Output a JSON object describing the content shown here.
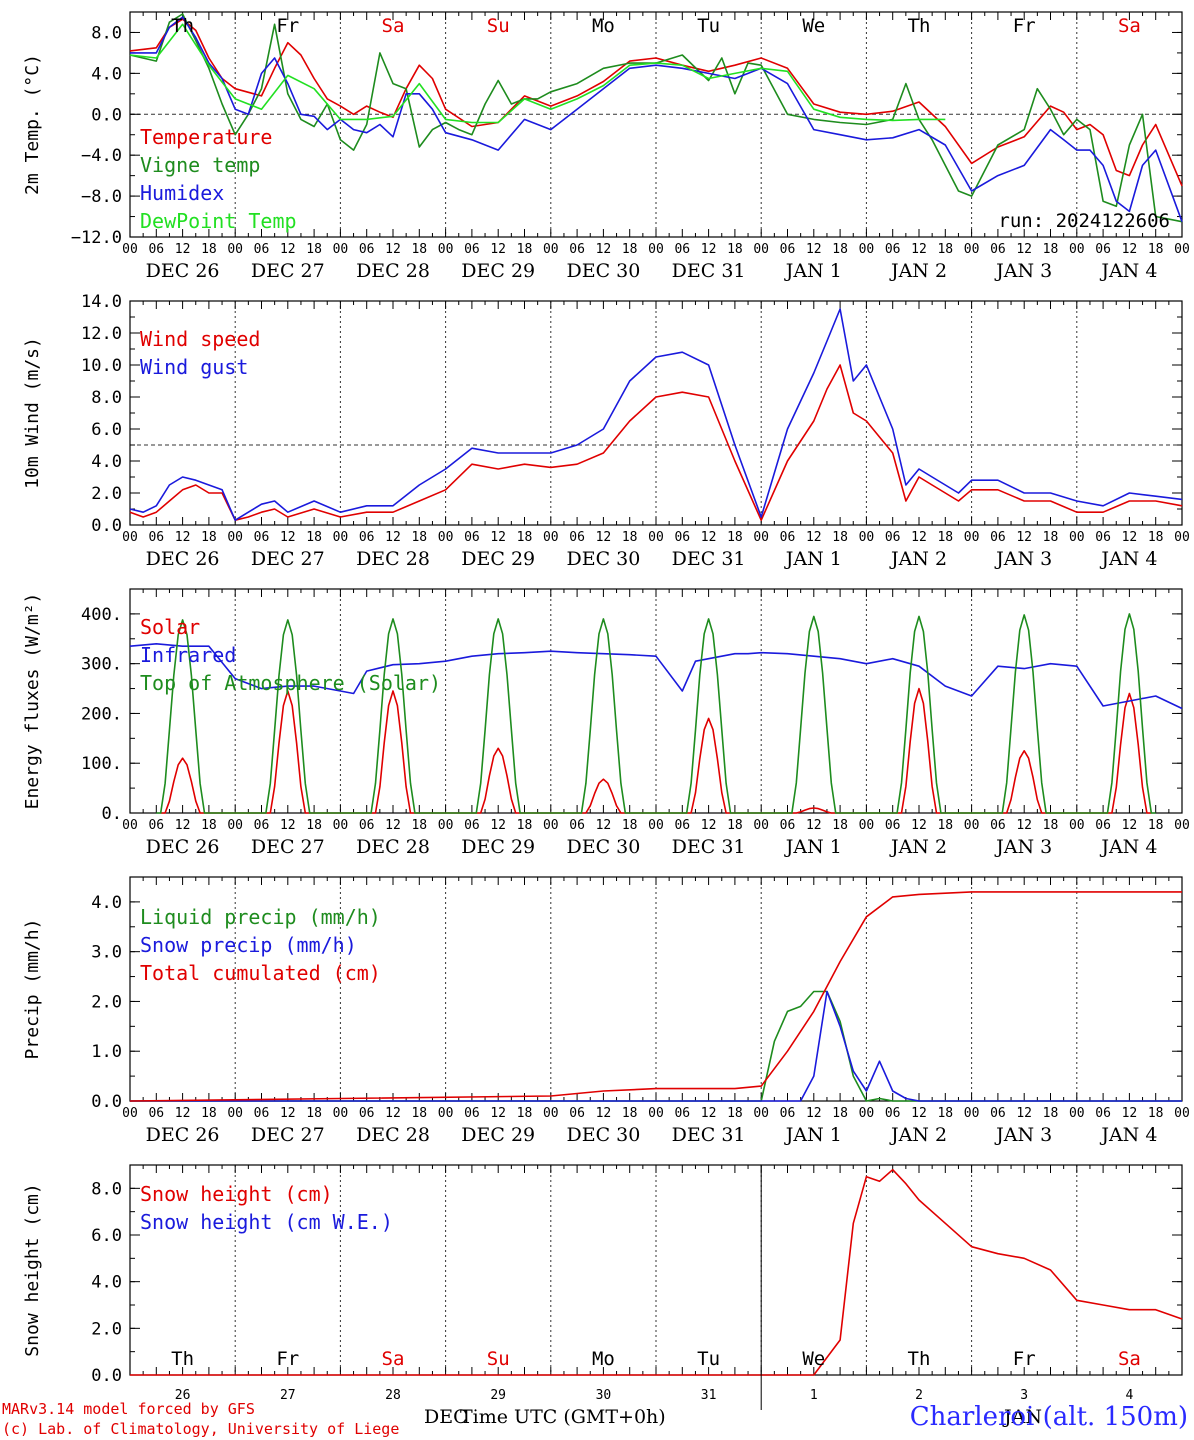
{
  "run_label": "run: 2024122606",
  "station": "Charleroi (alt. 150m)",
  "credits": [
    "MARv3.14 model forced by GFS",
    "(c) Lab. of Climatology, University of Liege"
  ],
  "xaxis_title": "Time UTC (GMT+0h)",
  "bottom_months": [
    "DEC",
    "JAN"
  ],
  "day_names": [
    "Th",
    "Fr",
    "Sa",
    "Su",
    "Mo",
    "Tu",
    "We",
    "Th",
    "Fr",
    "Sa"
  ],
  "day_name_colors": [
    "#000000",
    "#000000",
    "#e00000",
    "#e00000",
    "#000000",
    "#000000",
    "#000000",
    "#000000",
    "#000000",
    "#e00000"
  ],
  "date_labels": [
    "DEC 26",
    "DEC 27",
    "DEC 28",
    "DEC 29",
    "DEC 30",
    "DEC 31",
    "JAN  1",
    "JAN  2",
    "JAN  3",
    "JAN  4"
  ],
  "day_numbers": [
    "26",
    "27",
    "28",
    "29",
    "30",
    "31",
    "1",
    "2",
    "3",
    "4"
  ],
  "hour_labels": [
    "00",
    "06",
    "12",
    "18"
  ],
  "chart_data": [
    {
      "type": "line",
      "ylabel": "2m Temp. (°C)",
      "ylim": [
        -12,
        10
      ],
      "yticks": [
        8,
        4,
        0,
        -4,
        -8,
        -12
      ],
      "ytick_labels": [
        "8.0",
        "4.0",
        "0.0",
        "−4.0",
        "−8.0",
        "−12.0"
      ],
      "ref_line": 0,
      "x_unit": "hours since Dec 26 00 UTC",
      "xlim": [
        0,
        240
      ],
      "legend_placement": "left",
      "series": [
        {
          "name": "Temperature",
          "color": "#e00000",
          "x": [
            0,
            6,
            9,
            12,
            15,
            18,
            21,
            24,
            30,
            33,
            36,
            39,
            42,
            45,
            48,
            51,
            54,
            57,
            60,
            63,
            66,
            69,
            72,
            78,
            84,
            90,
            96,
            102,
            108,
            114,
            120,
            126,
            132,
            138,
            144,
            150,
            156,
            162,
            168,
            174,
            180,
            186,
            192,
            198,
            204,
            210,
            213,
            216,
            219,
            222,
            225,
            228,
            231,
            234,
            240
          ],
          "y": [
            6.2,
            6.5,
            8.5,
            9.3,
            8.2,
            5.5,
            3.5,
            2.5,
            1.8,
            4.5,
            7,
            5.8,
            3.5,
            1.5,
            0.8,
            0,
            0.8,
            0.2,
            -0.3,
            2.5,
            4.8,
            3.5,
            0.5,
            -1.2,
            -0.8,
            1.8,
            0.8,
            1.8,
            3.2,
            5.2,
            5.5,
            4.8,
            4.2,
            4.8,
            5.5,
            4.5,
            1,
            0.2,
            0,
            0.3,
            1.2,
            -1.2,
            -4.8,
            -3.2,
            -2.2,
            0.8,
            0.2,
            -1.5,
            -1,
            -2,
            -5.5,
            -6,
            -3,
            -1,
            -7
          ]
        },
        {
          "name": "Vigne temp",
          "color": "#1e8c1e",
          "x": [
            0,
            6,
            9,
            12,
            15,
            18,
            21,
            24,
            27,
            30,
            33,
            36,
            39,
            42,
            45,
            48,
            51,
            54,
            57,
            60,
            63,
            66,
            69,
            72,
            75,
            78,
            81,
            84,
            87,
            90,
            93,
            96,
            102,
            108,
            114,
            120,
            126,
            132,
            135,
            138,
            141,
            144,
            150,
            156,
            162,
            168,
            174,
            177,
            180,
            183,
            186,
            189,
            192,
            198,
            204,
            207,
            210,
            213,
            216,
            219,
            222,
            225,
            228,
            231,
            234,
            240
          ],
          "y": [
            5.8,
            5.2,
            9,
            9.8,
            7.2,
            4.5,
            1,
            -2,
            0,
            2.5,
            8.8,
            2,
            -0.5,
            -1.2,
            1,
            -2.5,
            -3.5,
            -1,
            6,
            3,
            2.5,
            -3.2,
            -1.5,
            -0.8,
            -1.5,
            -2,
            1,
            3.3,
            1,
            1.5,
            1.5,
            2.2,
            3,
            4.5,
            5,
            5,
            5.8,
            3.3,
            5.5,
            2,
            5,
            4.8,
            0,
            -0.5,
            -0.8,
            -1,
            -0.5,
            3,
            -0.5,
            -2.5,
            -5,
            -7.5,
            -8,
            -3,
            -1.5,
            2.5,
            0.5,
            -2,
            -0.5,
            -1.5,
            -8.5,
            -9,
            -3,
            0,
            -10,
            -10.5
          ]
        },
        {
          "name": "Humidex",
          "color": "#1a1adc",
          "x": [
            0,
            6,
            9,
            12,
            15,
            18,
            21,
            24,
            27,
            30,
            33,
            36,
            39,
            42,
            45,
            48,
            51,
            54,
            57,
            60,
            63,
            66,
            69,
            72,
            78,
            84,
            90,
            96,
            102,
            108,
            114,
            120,
            126,
            132,
            138,
            144,
            150,
            156,
            162,
            168,
            174,
            180,
            186,
            192,
            198,
            204,
            210,
            213,
            216,
            219,
            222,
            225,
            228,
            231,
            234,
            240
          ],
          "y": [
            6,
            6,
            8.5,
            9.5,
            7.5,
            5,
            3.5,
            0.5,
            0,
            4,
            5.5,
            3,
            0,
            -0.2,
            -1.5,
            -0.5,
            -1.5,
            -1.8,
            -1,
            -2.2,
            2,
            2,
            0.5,
            -1.8,
            -2.5,
            -3.5,
            -0.5,
            -1.5,
            0.5,
            2.5,
            4.5,
            4.8,
            4.5,
            4,
            3.5,
            4.5,
            3,
            -1.5,
            -2,
            -2.5,
            -2.3,
            -1.5,
            -3,
            -7.5,
            -6,
            -5,
            -1.5,
            -2.5,
            -3.5,
            -3.5,
            -5,
            -8.5,
            -9.5,
            -5,
            -3.5,
            -10.5
          ]
        },
        {
          "name": "DewPoint Temp",
          "color": "#22e022",
          "x": [
            0,
            6,
            12,
            18,
            24,
            30,
            36,
            42,
            48,
            54,
            60,
            66,
            72,
            78,
            84,
            90,
            96,
            102,
            108,
            114,
            120,
            126,
            132,
            138,
            144,
            150,
            156,
            162,
            168,
            174,
            180,
            186
          ],
          "y": [
            5.8,
            5.5,
            8.8,
            4.8,
            1.5,
            0.5,
            3.8,
            2.5,
            -0.5,
            -0.5,
            -0.2,
            3,
            -0.5,
            -0.8,
            -0.8,
            1.5,
            0.5,
            1.5,
            2.8,
            4.8,
            5,
            4.8,
            3.5,
            4,
            4.5,
            4.2,
            0.5,
            -0.3,
            -0.5,
            -0.6,
            -0.5,
            -0.5
          ]
        }
      ]
    },
    {
      "type": "line",
      "ylabel": "10m Wind (m/s)",
      "ylim": [
        0,
        14
      ],
      "yticks": [
        0,
        2,
        4,
        6,
        8,
        10,
        12,
        14
      ],
      "ytick_labels": [
        "0.0",
        "2.0",
        "4.0",
        "6.0",
        "8.0",
        "10.0",
        "12.0",
        "14.0"
      ],
      "ref_line": 5,
      "xlim": [
        0,
        240
      ],
      "legend_placement": "left",
      "series": [
        {
          "name": "Wind speed",
          "color": "#e00000",
          "x": [
            0,
            3,
            6,
            9,
            12,
            15,
            18,
            21,
            24,
            27,
            30,
            33,
            36,
            42,
            48,
            54,
            60,
            66,
            72,
            78,
            84,
            90,
            96,
            102,
            108,
            114,
            120,
            126,
            132,
            138,
            144,
            150,
            156,
            159,
            162,
            165,
            168,
            171,
            174,
            177,
            180,
            183,
            186,
            189,
            192,
            198,
            204,
            210,
            216,
            222,
            228,
            234,
            240
          ],
          "y": [
            0.8,
            0.5,
            0.8,
            1.5,
            2.2,
            2.5,
            2,
            2,
            0.3,
            0.5,
            0.8,
            1,
            0.5,
            1,
            0.5,
            0.8,
            0.8,
            1.5,
            2.2,
            3.8,
            3.5,
            3.8,
            3.6,
            3.8,
            4.5,
            6.5,
            8,
            8.3,
            8,
            4,
            0.3,
            4,
            6.5,
            8.5,
            10,
            7,
            6.5,
            5.5,
            4.5,
            1.5,
            3,
            2.5,
            2,
            1.5,
            2.2,
            2.2,
            1.5,
            1.5,
            0.8,
            0.8,
            1.5,
            1.5,
            1.2
          ]
        },
        {
          "name": "Wind gust",
          "color": "#1a1adc",
          "x": [
            0,
            3,
            6,
            9,
            12,
            15,
            18,
            21,
            24,
            27,
            30,
            33,
            36,
            42,
            48,
            54,
            60,
            66,
            72,
            78,
            84,
            90,
            96,
            102,
            108,
            114,
            120,
            126,
            132,
            138,
            144,
            150,
            156,
            159,
            162,
            165,
            168,
            171,
            174,
            177,
            180,
            183,
            186,
            189,
            192,
            198,
            204,
            210,
            216,
            222,
            228,
            234,
            240
          ],
          "y": [
            1,
            0.8,
            1.2,
            2.5,
            3,
            2.8,
            2.5,
            2.2,
            0.3,
            0.8,
            1.3,
            1.5,
            0.8,
            1.5,
            0.8,
            1.2,
            1.2,
            2.5,
            3.5,
            4.8,
            4.5,
            4.5,
            4.5,
            5,
            6,
            9,
            10.5,
            10.8,
            10,
            5,
            0.5,
            6,
            9.5,
            11.5,
            13.5,
            9,
            10,
            8,
            6,
            2.5,
            3.5,
            3,
            2.5,
            2,
            2.8,
            2.8,
            2,
            2,
            1.5,
            1.2,
            2,
            1.8,
            1.6
          ]
        }
      ]
    },
    {
      "type": "line",
      "ylabel": "Energy fluxes (W/m²)",
      "ylim": [
        0,
        450
      ],
      "yticks": [
        0,
        100,
        200,
        300,
        400
      ],
      "ytick_labels": [
        "0.",
        "100.",
        "200.",
        "300.",
        "400."
      ],
      "xlim": [
        0,
        240
      ],
      "legend_placement": "left",
      "series": [
        {
          "name": "Solar",
          "color": "#e00000",
          "peaks": [
            110,
            245,
            245,
            130,
            68,
            190,
            10,
            250,
            125,
            240
          ]
        },
        {
          "name": "Infrared",
          "color": "#1a1adc",
          "x": [
            0,
            6,
            12,
            18,
            24,
            30,
            36,
            42,
            48,
            51,
            54,
            60,
            66,
            72,
            78,
            84,
            90,
            96,
            102,
            108,
            114,
            120,
            126,
            129,
            132,
            138,
            141,
            144,
            150,
            156,
            162,
            168,
            174,
            180,
            186,
            192,
            198,
            204,
            210,
            216,
            222,
            228,
            234,
            240
          ],
          "y": [
            335,
            340,
            335,
            335,
            270,
            250,
            255,
            255,
            245,
            240,
            285,
            298,
            300,
            305,
            315,
            320,
            322,
            325,
            322,
            320,
            318,
            315,
            245,
            305,
            310,
            320,
            320,
            322,
            320,
            315,
            310,
            300,
            310,
            295,
            255,
            235,
            295,
            290,
            300,
            295,
            215,
            225,
            235,
            210
          ]
        },
        {
          "name": "Top of Atmosphere (Solar)",
          "color": "#1e8c1e",
          "peaks": [
            388,
            388,
            390,
            390,
            390,
            390,
            395,
            395,
            398,
            400
          ]
        }
      ]
    },
    {
      "type": "line",
      "ylabel": "Precip (mm/h)",
      "ylim": [
        0,
        4.5
      ],
      "yticks": [
        0,
        1,
        2,
        3,
        4
      ],
      "ytick_labels": [
        "0.0",
        "1.0",
        "2.0",
        "3.0",
        "4.0"
      ],
      "xlim": [
        0,
        240
      ],
      "legend_placement": "left",
      "series": [
        {
          "name": "Liquid precip (mm/h)",
          "color": "#1e8c1e",
          "x": [
            0,
            120,
            144,
            147,
            150,
            153,
            156,
            159,
            162,
            165,
            168,
            171,
            174,
            177,
            180,
            240
          ],
          "y": [
            0,
            0,
            0,
            1.2,
            1.8,
            1.9,
            2.2,
            2.2,
            1.6,
            0.5,
            0,
            0.05,
            0,
            0,
            0,
            0
          ]
        },
        {
          "name": "Snow precip (mm/h)",
          "color": "#1a1adc",
          "x": [
            0,
            150,
            153,
            156,
            159,
            162,
            165,
            168,
            171,
            174,
            177,
            180,
            186,
            240
          ],
          "y": [
            0,
            0,
            0,
            0.5,
            2.2,
            1.5,
            0.6,
            0.2,
            0.8,
            0.2,
            0.05,
            0,
            0,
            0
          ]
        },
        {
          "name": "Total cumulated (cm)",
          "color": "#e00000",
          "x": [
            0,
            48,
            96,
            108,
            120,
            126,
            138,
            144,
            150,
            156,
            162,
            168,
            174,
            180,
            192,
            240
          ],
          "y": [
            0,
            0.05,
            0.1,
            0.2,
            0.25,
            0.25,
            0.25,
            0.3,
            1,
            1.8,
            2.8,
            3.7,
            4.1,
            4.15,
            4.2,
            4.2
          ]
        }
      ]
    },
    {
      "type": "line",
      "ylabel": "Snow height (cm)",
      "ylim": [
        0,
        9
      ],
      "yticks": [
        0,
        2,
        4,
        6,
        8
      ],
      "ytick_labels": [
        "0.0",
        "2.0",
        "4.0",
        "6.0",
        "8.0"
      ],
      "xlim": [
        0,
        240
      ],
      "legend_placement": "left",
      "series": [
        {
          "name": "Snow height (cm)",
          "color": "#e00000",
          "x": [
            0,
            156,
            162,
            165,
            168,
            171,
            174,
            177,
            180,
            186,
            192,
            198,
            204,
            210,
            216,
            222,
            228,
            234,
            240
          ],
          "y": [
            0,
            0,
            1.5,
            6.5,
            8.5,
            8.3,
            8.8,
            8.2,
            7.5,
            6.5,
            5.5,
            5.2,
            5.0,
            4.5,
            3.2,
            3.0,
            2.8,
            2.8,
            2.4
          ]
        },
        {
          "name": "Snow height (cm W.E.)",
          "color": "#1a1adc",
          "x": [],
          "y": []
        }
      ]
    }
  ]
}
